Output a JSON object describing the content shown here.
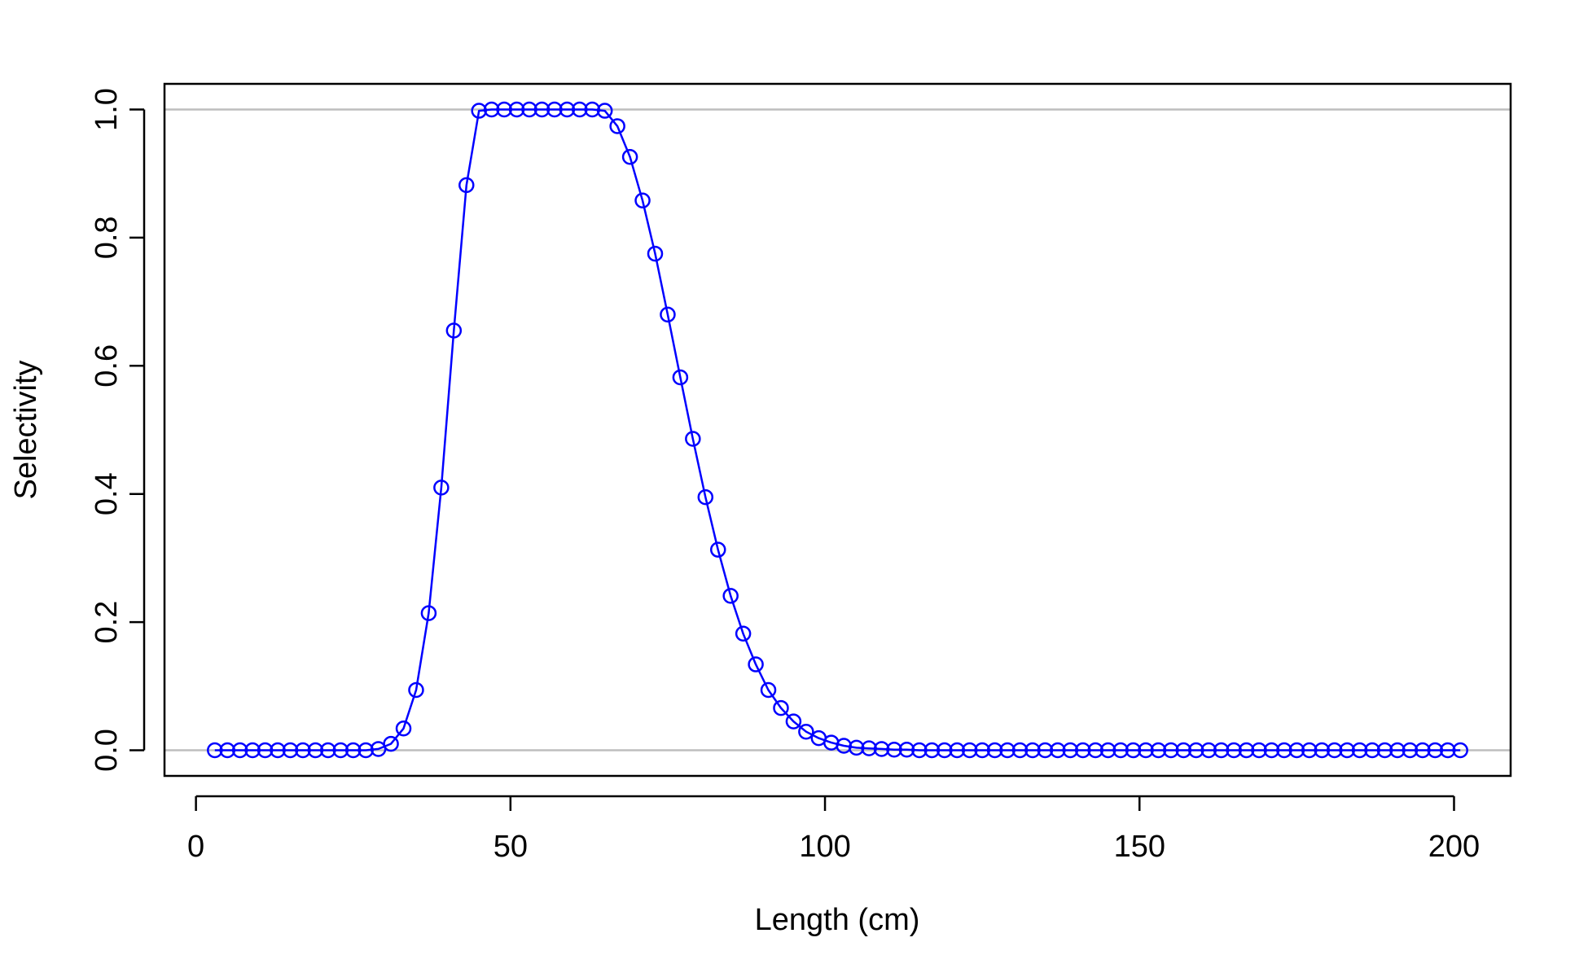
{
  "chart_data": {
    "type": "line",
    "title": "",
    "xlabel": "Length (cm)",
    "ylabel": "Selectivity",
    "xlim": [
      -5,
      209
    ],
    "ylim": [
      -0.04,
      1.04
    ],
    "x_ticks": [
      0,
      50,
      100,
      150,
      200
    ],
    "y_ticks": [
      0.0,
      0.2,
      0.4,
      0.6,
      0.8,
      1.0
    ],
    "x_tick_labels": [
      "0",
      "50",
      "100",
      "150",
      "200"
    ],
    "y_tick_labels": [
      "0.0",
      "0.2",
      "0.4",
      "0.6",
      "0.8",
      "1.0"
    ],
    "reference_lines_y": [
      0,
      1
    ],
    "grid": false,
    "legend": "none",
    "colors": {
      "series": "#0000ff",
      "reference": "#bebebe",
      "frame": "#000000"
    },
    "marker": "open-circle",
    "series": [
      {
        "x": [
          3,
          5,
          7,
          9,
          11,
          13,
          15,
          17,
          19,
          21,
          23,
          25,
          27,
          29,
          31,
          33,
          35,
          37,
          39,
          41,
          43,
          45,
          47,
          49,
          51,
          53,
          55,
          57,
          59,
          61,
          63,
          65,
          67,
          69,
          71,
          73,
          75,
          77,
          79,
          81,
          83,
          85,
          87,
          89,
          91,
          93,
          95,
          97,
          99,
          101,
          103,
          105,
          107,
          109,
          111,
          113,
          115,
          117,
          119,
          121,
          123,
          125,
          127,
          129,
          131,
          133,
          135,
          137,
          139,
          141,
          143,
          145,
          147,
          149,
          151,
          153,
          155,
          157,
          159,
          161,
          163,
          165,
          167,
          169,
          171,
          173,
          175,
          177,
          179,
          181,
          183,
          185,
          187,
          189,
          191,
          193,
          195,
          197,
          199,
          201
        ],
        "values": [
          0,
          0,
          0,
          0,
          0,
          0,
          0,
          0,
          0,
          0,
          0,
          0,
          0,
          0.002,
          0.01,
          0.034,
          0.094,
          0.214,
          0.41,
          0.655,
          0.882,
          0.998,
          1,
          1,
          1,
          1,
          1,
          1,
          1,
          1,
          1,
          0.998,
          0.974,
          0.926,
          0.858,
          0.775,
          0.68,
          0.582,
          0.486,
          0.395,
          0.313,
          0.241,
          0.182,
          0.134,
          0.094,
          0.066,
          0.045,
          0.029,
          0.019,
          0.012,
          0.007,
          0.004,
          0.003,
          0.002,
          0.001,
          0.001,
          0,
          0,
          0,
          0,
          0,
          0,
          0,
          0,
          0,
          0,
          0,
          0,
          0,
          0,
          0,
          0,
          0,
          0,
          0,
          0,
          0,
          0,
          0,
          0,
          0,
          0,
          0,
          0,
          0,
          0,
          0,
          0,
          0,
          0,
          0,
          0,
          0,
          0,
          0,
          0,
          0,
          0,
          0,
          0
        ]
      }
    ]
  }
}
